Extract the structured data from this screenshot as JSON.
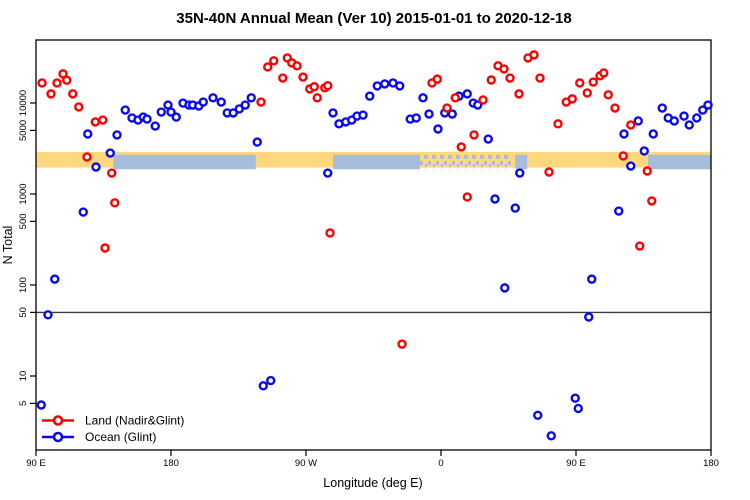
{
  "title": "35N-40N Annual Mean (Ver 10)   2015-01-01 to 2020-12-18",
  "legend": {
    "items": [
      {
        "label": "Land (Nadir&Glint)",
        "color": "#ff0000"
      },
      {
        "label": "Ocean (Glint)",
        "color": "#0a0af0"
      }
    ]
  },
  "chart_data": {
    "type": "scatter",
    "title": "35N-40N Annual Mean (Ver 10)   2015-01-01 to 2020-12-18",
    "xlabel": "Longitude (deg E)",
    "ylabel": "N Total",
    "y_scale": "log",
    "grid": false,
    "x_range": [
      90,
      540
    ],
    "y_range": [
      1.5,
      49000
    ],
    "x_ticks": [
      {
        "lon": 90,
        "label": "90 E"
      },
      {
        "lon": 180,
        "label": "180"
      },
      {
        "lon": 270,
        "label": "90 W"
      },
      {
        "lon": 360,
        "label": "0"
      },
      {
        "lon": 450,
        "label": "90 E"
      },
      {
        "lon": 540,
        "label": "180"
      }
    ],
    "y_ticks": [
      10000,
      5000,
      1000,
      500,
      100,
      50,
      10,
      5
    ],
    "reference_line_y": 50,
    "legend_position": "bottom-left",
    "bands": [
      {
        "name": "land-sample-band",
        "color": "#ffd87e",
        "value_range": [
          1950,
          2900
        ],
        "lon_segments": [
          [
            90,
            540
          ]
        ],
        "speckle_segments": []
      },
      {
        "name": "ocean-sample-band",
        "color": "#a7bddc",
        "value_range": [
          1870,
          2700
        ],
        "lon_segments": [
          [
            141.5,
            236.5
          ],
          [
            288,
            346
          ],
          [
            409.5,
            417.5
          ],
          [
            498,
            540
          ]
        ],
        "speckle_segments": [
          [
            346,
            407.5
          ]
        ]
      }
    ],
    "series": [
      {
        "name": "Land (Nadir&Glint)",
        "color": "#ff0000",
        "marker": "open-circle",
        "points": [
          [
            94,
            16600
          ],
          [
            100,
            12600
          ],
          [
            104,
            16600
          ],
          [
            108,
            20900
          ],
          [
            110.5,
            17800
          ],
          [
            114.5,
            12600
          ],
          [
            118.5,
            9050
          ],
          [
            124,
            2550
          ],
          [
            129.5,
            6200
          ],
          [
            134.5,
            6500
          ],
          [
            136,
            255
          ],
          [
            140.5,
            1700
          ],
          [
            142.5,
            800
          ],
          [
            240,
            10250
          ],
          [
            244.5,
            24900
          ],
          [
            248.5,
            29100
          ],
          [
            254.5,
            18800
          ],
          [
            257.5,
            31300
          ],
          [
            260.5,
            27600
          ],
          [
            264,
            25600
          ],
          [
            268,
            19300
          ],
          [
            272.5,
            14300
          ],
          [
            275.5,
            15100
          ],
          [
            277.5,
            11400
          ],
          [
            282.5,
            14700
          ],
          [
            284.5,
            15500
          ],
          [
            286,
            373
          ],
          [
            334,
            22.4
          ],
          [
            354,
            16600
          ],
          [
            357.5,
            18300
          ],
          [
            364,
            8800
          ],
          [
            369.5,
            11400
          ],
          [
            373.5,
            3290
          ],
          [
            377.5,
            928
          ],
          [
            382,
            4460
          ],
          [
            388,
            10800
          ],
          [
            393.5,
            17900
          ],
          [
            398,
            25600
          ],
          [
            402,
            23700
          ],
          [
            406,
            18800
          ],
          [
            412,
            12600
          ],
          [
            418,
            31300
          ],
          [
            422,
            33800
          ],
          [
            426,
            18800
          ],
          [
            432,
            1745
          ],
          [
            438,
            5900
          ],
          [
            443.5,
            10250
          ],
          [
            447.5,
            11100
          ],
          [
            452.5,
            16600
          ],
          [
            457.5,
            12900
          ],
          [
            461.5,
            17000
          ],
          [
            466,
            19900
          ],
          [
            468.5,
            21400
          ],
          [
            471.5,
            12300
          ],
          [
            476,
            8800
          ],
          [
            481.5,
            2620
          ],
          [
            486.5,
            5740
          ],
          [
            492.5,
            268
          ],
          [
            497.5,
            1790
          ],
          [
            500.5,
            840
          ]
        ]
      },
      {
        "name": "Ocean (Glint)",
        "color": "#0a0af0",
        "marker": "open-circle",
        "points": [
          [
            93.5,
            4.8
          ],
          [
            98,
            47
          ],
          [
            102.5,
            116
          ],
          [
            121.5,
            633
          ],
          [
            124.5,
            4570
          ],
          [
            130,
            1980
          ],
          [
            139.5,
            2820
          ],
          [
            144,
            4460
          ],
          [
            149.5,
            8370
          ],
          [
            154,
            6850
          ],
          [
            158,
            6500
          ],
          [
            161.5,
            7000
          ],
          [
            164,
            6660
          ],
          [
            169.5,
            5580
          ],
          [
            173.5,
            7960
          ],
          [
            178,
            9500
          ],
          [
            180,
            7960
          ],
          [
            183.5,
            7000
          ],
          [
            188,
            9980
          ],
          [
            192,
            9500
          ],
          [
            194.5,
            9500
          ],
          [
            198.5,
            9270
          ],
          [
            201.5,
            10250
          ],
          [
            208,
            11400
          ],
          [
            213.5,
            10250
          ],
          [
            217.5,
            7780
          ],
          [
            221.5,
            7780
          ],
          [
            225.5,
            8600
          ],
          [
            229.5,
            9500
          ],
          [
            233.5,
            11400
          ],
          [
            237.5,
            3720
          ],
          [
            241.5,
            7.8
          ],
          [
            246.5,
            8.9
          ],
          [
            284.5,
            1700
          ],
          [
            288,
            7780
          ],
          [
            292,
            5900
          ],
          [
            296.5,
            6200
          ],
          [
            300.5,
            6500
          ],
          [
            304,
            7180
          ],
          [
            308,
            7370
          ],
          [
            312.5,
            11900
          ],
          [
            317.5,
            15400
          ],
          [
            322.5,
            16200
          ],
          [
            328,
            16600
          ],
          [
            332.5,
            15400
          ],
          [
            339.5,
            6660
          ],
          [
            343.5,
            6850
          ],
          [
            348,
            11400
          ],
          [
            352,
            7570
          ],
          [
            358,
            5180
          ],
          [
            362.5,
            7780
          ],
          [
            367.5,
            7570
          ],
          [
            372,
            11900
          ],
          [
            377.5,
            12600
          ],
          [
            381.5,
            9980
          ],
          [
            384.5,
            9500
          ],
          [
            391.5,
            4020
          ],
          [
            396,
            881
          ],
          [
            402.5,
            93
          ],
          [
            409.5,
            700
          ],
          [
            412.5,
            1700
          ],
          [
            424.5,
            3.7
          ],
          [
            433.5,
            2.2
          ],
          [
            449.5,
            5.7
          ],
          [
            451.5,
            4.4
          ],
          [
            458.5,
            44.5
          ],
          [
            460.5,
            116
          ],
          [
            478.5,
            650
          ],
          [
            482,
            4570
          ],
          [
            486.5,
            2030
          ],
          [
            491.5,
            6350
          ],
          [
            495.5,
            2970
          ],
          [
            501.5,
            4570
          ],
          [
            507.5,
            8800
          ],
          [
            511.5,
            6850
          ],
          [
            515.5,
            6350
          ],
          [
            522,
            7180
          ],
          [
            525.5,
            5740
          ],
          [
            530.5,
            6850
          ],
          [
            534.5,
            8370
          ],
          [
            538,
            9500
          ]
        ]
      }
    ]
  }
}
